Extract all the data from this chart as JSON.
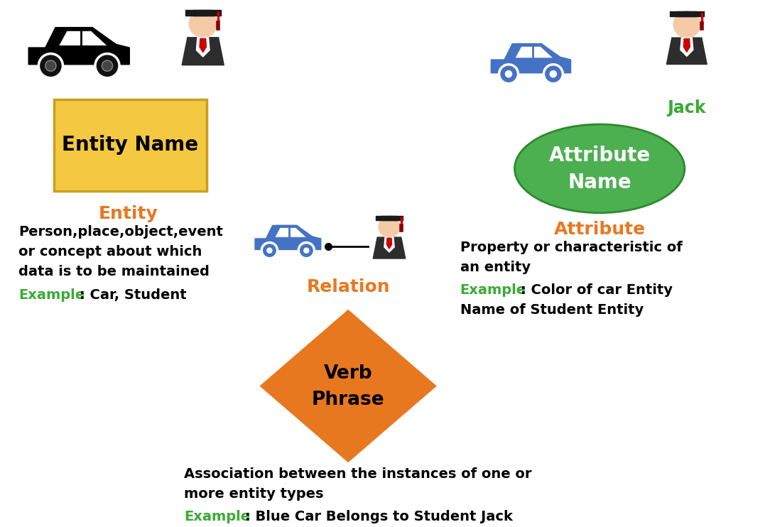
{
  "bg_color": "#ffffff",
  "orange_color": "#E87820",
  "green_color": "#3aaa35",
  "black_color": "#1a1a1a",
  "entity_box_color": "#F5C842",
  "entity_box_edge": "#C8A020",
  "attribute_ellipse_color": "#4CAF50",
  "relation_diamond_color": "#E87820",
  "blue_car_color": "#4472C4",
  "entity_label": "Entity",
  "entity_box_text": "Entity Name",
  "entity_desc_line1": "Person,place,object,event",
  "entity_desc_line2": "or concept about which",
  "entity_desc_line3": "data is to be maintained",
  "entity_example": "Example",
  "entity_example_colon": ":",
  "entity_example_rest": " Car, Student",
  "attribute_label": "Attribute",
  "attribute_ellipse_text1": "Attribute",
  "attribute_ellipse_text2": "Name",
  "jack_label": "Jack",
  "attribute_desc_line1": "Property or characteristic of",
  "attribute_desc_line2": "an entity",
  "attribute_example": "Example",
  "attribute_example_colon": ":",
  "attribute_example_rest1": " Color of car Entity",
  "attribute_example_rest2": "Name of Student Entity",
  "relation_label": "Relation",
  "relation_diamond_text1": "Verb",
  "relation_diamond_text2": "Phrase",
  "relation_desc_line1": "Association between the instances of one or",
  "relation_desc_line2": "more entity types",
  "relation_example": "Example",
  "relation_example_colon": ":",
  "relation_example_rest": " Blue Car Belongs to Student Jack",
  "skin_color": "#F5CBA7",
  "gown_color": "#2d2d2d",
  "cap_color": "#1a1a1a",
  "tassel_color": "#cc0000",
  "tie_color": "#cc0000"
}
